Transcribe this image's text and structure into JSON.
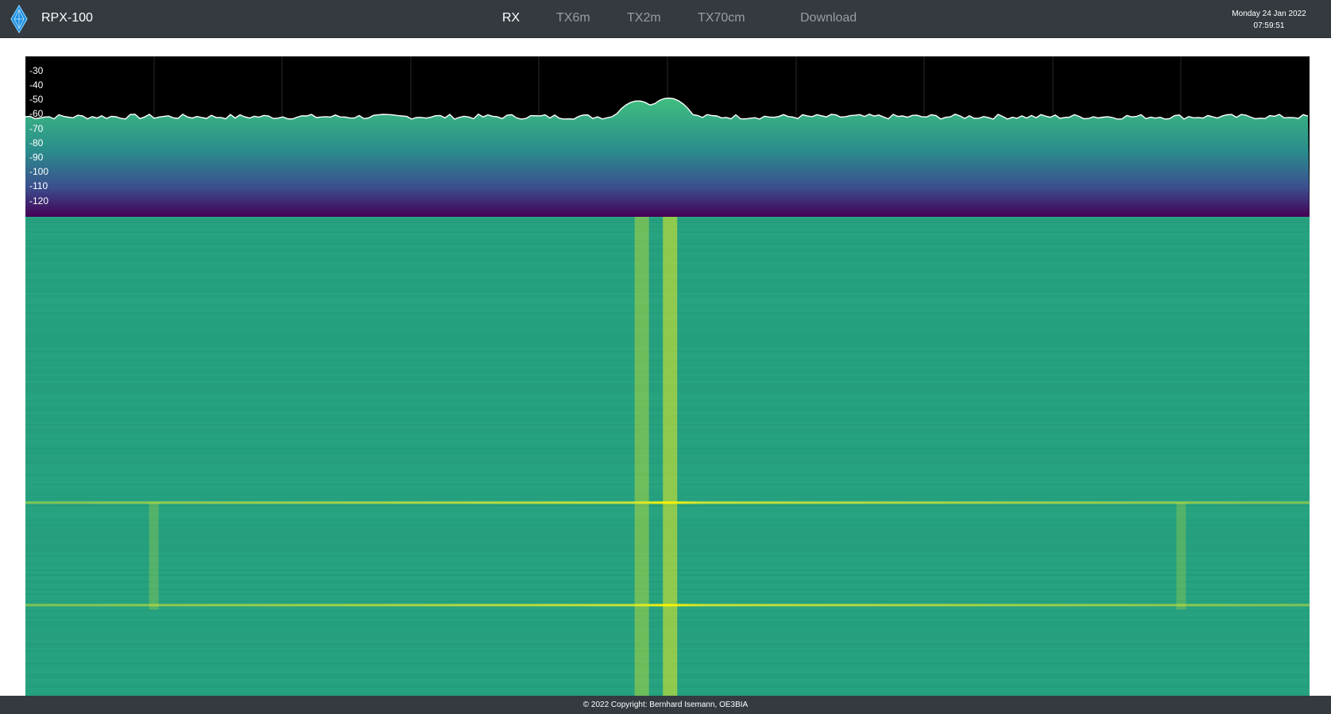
{
  "app": {
    "name": "RPX-100",
    "logo_icon": "diamond-antenna-logo-icon"
  },
  "nav": {
    "items": [
      {
        "label": "RX",
        "active": true
      },
      {
        "label": "TX6m",
        "active": false
      },
      {
        "label": "TX2m",
        "active": false
      },
      {
        "label": "TX70cm",
        "active": false
      },
      {
        "label": "Download",
        "active": false
      }
    ]
  },
  "clock": {
    "date": "Monday 24 Jan 2022",
    "time": "07:59:51"
  },
  "spectrum": {
    "y_labels": [
      "-30",
      "-40",
      "-50",
      "-60",
      "-70",
      "-80",
      "-90",
      "-100",
      "-110",
      "-120"
    ],
    "noise_floor_db": -62,
    "peaks": [
      {
        "position": 0.477,
        "level_db": -51
      },
      {
        "position": 0.501,
        "level_db": -49
      }
    ],
    "colors": {
      "trace": "#ffffff",
      "fill_top": "#3fbf7f",
      "fill_mid": "#2a8c8c",
      "fill_low": "#3b4f8f",
      "fill_bottom": "#440154"
    }
  },
  "waterfall": {
    "background": "#26a17f",
    "signal_color": "#c8e035",
    "lines": [
      {
        "position": 0.48,
        "strength": 0.45
      },
      {
        "position": 0.502,
        "strength": 0.65
      }
    ],
    "faint_lines": [
      {
        "position": 0.1,
        "from": 0.597,
        "to": 0.82
      },
      {
        "position": 0.9,
        "from": 0.597,
        "to": 0.82
      }
    ],
    "horizontal_bursts": [
      0.596,
      0.81
    ]
  },
  "footer": {
    "copyright": "© 2022 Copyright: Bernhard Isemann, OE3BIA"
  }
}
